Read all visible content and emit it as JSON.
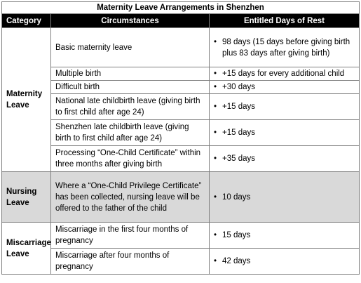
{
  "title": "Maternity Leave Arrangements in Shenzhen",
  "headers": {
    "category": "Category",
    "circumstances": "Circumstances",
    "days": "Entitled Days of Rest"
  },
  "bullet": "•",
  "groups": [
    {
      "category": "Maternity Leave",
      "rows": [
        {
          "circumstance": "Basic maternity leave",
          "days": "98 days (15 days before giving birth plus 83 days after giving birth)"
        },
        {
          "circumstance": "Multiple birth",
          "days": "+15 days for every additional child"
        },
        {
          "circumstance": "Difficult birth",
          "days": "+30 days"
        },
        {
          "circumstance": "National late childbirth leave (giving birth to first child after age 24)",
          "days": "+15 days"
        },
        {
          "circumstance": "Shenzhen late childbirth leave (giving birth to first child after age 24)",
          "days": "+15 days"
        },
        {
          "circumstance": "Processing “One-Child Certificate” within three months after giving birth",
          "days": "+35 days"
        }
      ]
    },
    {
      "category": "Nursing Leave",
      "rows": [
        {
          "circumstance": "Where a “One-Child Privilege Certificate” has been collected, nursing leave will be offered to the father of the child",
          "days": "10 days"
        }
      ]
    },
    {
      "category": "Miscarriage Leave",
      "rows": [
        {
          "circumstance": "Miscarriage in the first four months of pregnancy",
          "days": "15 days"
        },
        {
          "circumstance": "Miscarriage after four months of pregnancy",
          "days": "42 days"
        }
      ]
    }
  ]
}
